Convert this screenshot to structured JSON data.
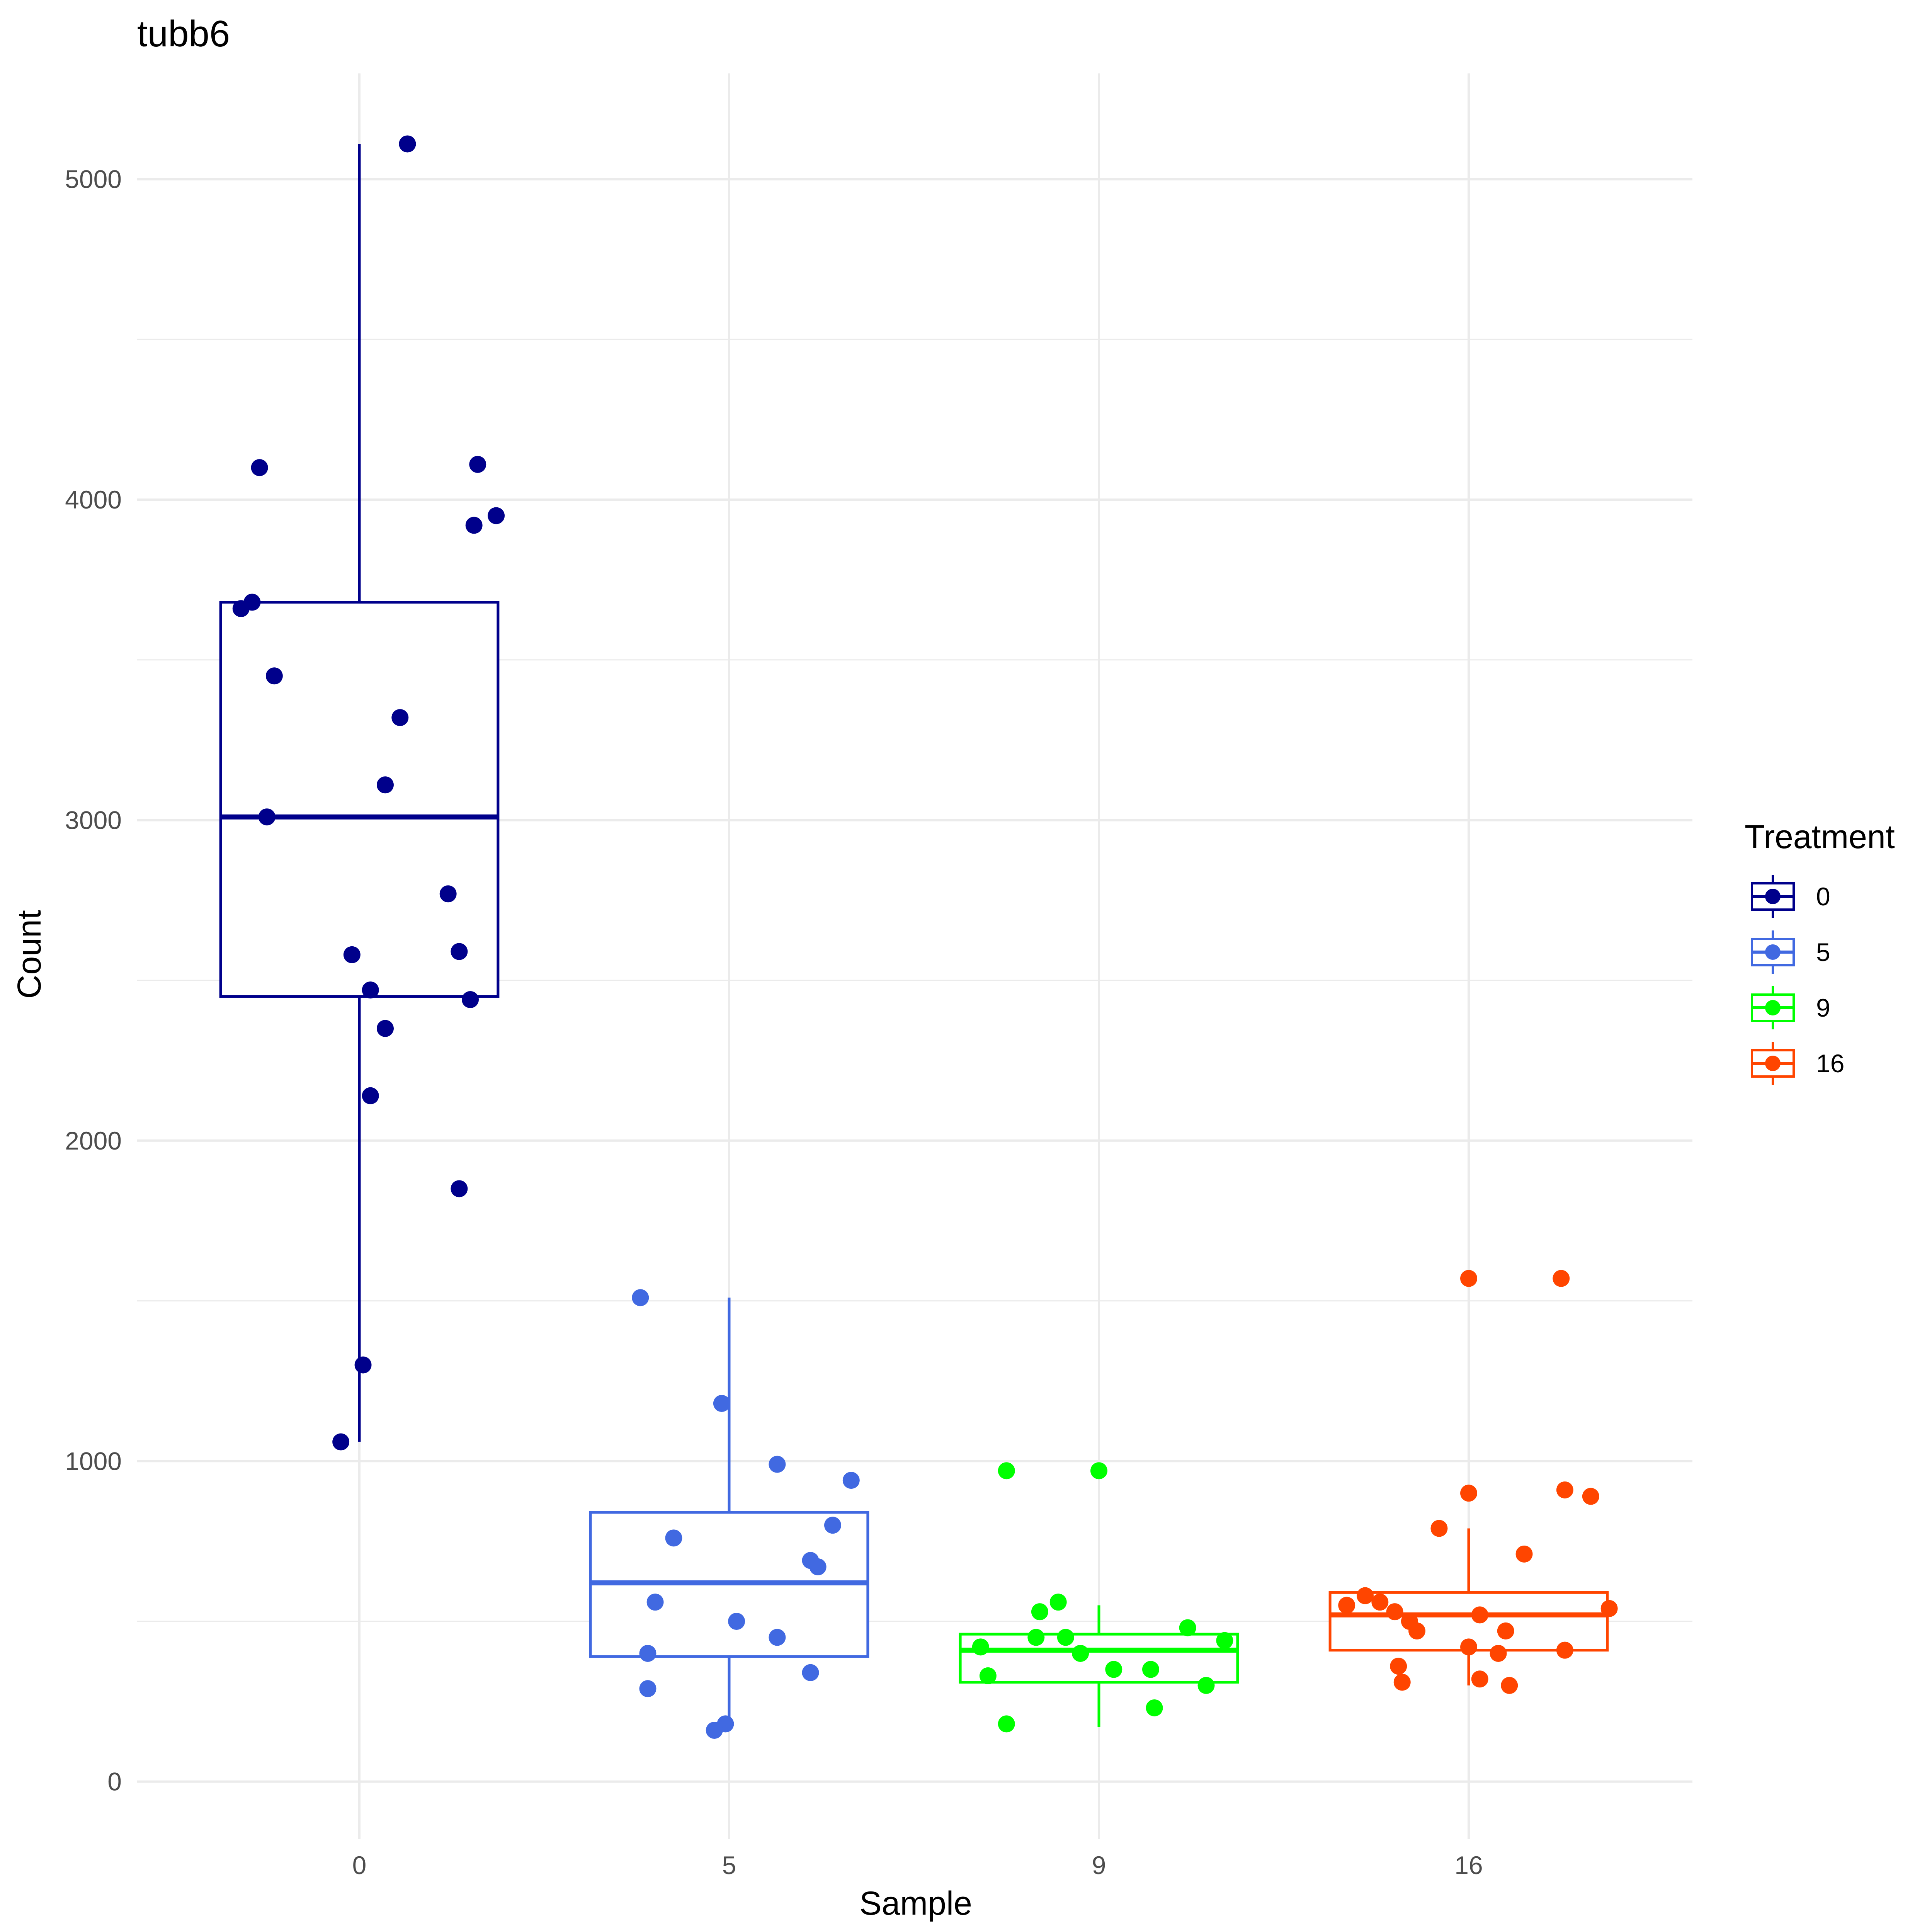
{
  "chart_data": {
    "type": "boxplot",
    "title": "tubb6",
    "xlabel": "Sample",
    "ylabel": "Count",
    "ylim": [
      -180,
      5330
    ],
    "y_ticks": [
      0,
      1000,
      2000,
      3000,
      4000,
      5000
    ],
    "grid": true,
    "legend": {
      "title": "Treatment",
      "position": "right",
      "entries": [
        "0",
        "5",
        "9",
        "16"
      ]
    },
    "categories": [
      "0",
      "5",
      "9",
      "16"
    ],
    "series": [
      {
        "name": "0",
        "color": "#00008B",
        "box": {
          "whisker_low": 1060,
          "q1": 2450,
          "median": 3010,
          "q3": 3680,
          "whisker_high": 5110
        },
        "points": [
          {
            "x": 0.13,
            "y": 5110
          },
          {
            "x": -0.27,
            "y": 4100
          },
          {
            "x": 0.32,
            "y": 4110
          },
          {
            "x": 0.37,
            "y": 3950
          },
          {
            "x": 0.31,
            "y": 3920
          },
          {
            "x": -0.32,
            "y": 3660
          },
          {
            "x": -0.29,
            "y": 3680
          },
          {
            "x": -0.23,
            "y": 3450
          },
          {
            "x": 0.11,
            "y": 3320
          },
          {
            "x": 0.07,
            "y": 3110
          },
          {
            "x": -0.25,
            "y": 3010
          },
          {
            "x": 0.24,
            "y": 2770
          },
          {
            "x": -0.02,
            "y": 2580
          },
          {
            "x": 0.27,
            "y": 2590
          },
          {
            "x": 0.03,
            "y": 2470
          },
          {
            "x": 0.3,
            "y": 2440
          },
          {
            "x": 0.07,
            "y": 2350
          },
          {
            "x": 0.03,
            "y": 2140
          },
          {
            "x": 0.27,
            "y": 1850
          },
          {
            "x": 0.01,
            "y": 1300
          },
          {
            "x": -0.05,
            "y": 1060
          }
        ]
      },
      {
        "name": "5",
        "color": "#4169E1",
        "box": {
          "whisker_low": 160,
          "q1": 390,
          "median": 620,
          "q3": 840,
          "whisker_high": 1510
        },
        "points": [
          {
            "x": -0.24,
            "y": 1510
          },
          {
            "x": -0.02,
            "y": 1180
          },
          {
            "x": 0.13,
            "y": 990
          },
          {
            "x": 0.33,
            "y": 940
          },
          {
            "x": 0.28,
            "y": 800
          },
          {
            "x": -0.15,
            "y": 760
          },
          {
            "x": 0.22,
            "y": 690
          },
          {
            "x": 0.24,
            "y": 670
          },
          {
            "x": -0.2,
            "y": 560
          },
          {
            "x": 0.02,
            "y": 500
          },
          {
            "x": 0.13,
            "y": 450
          },
          {
            "x": -0.22,
            "y": 400
          },
          {
            "x": 0.22,
            "y": 340
          },
          {
            "x": -0.22,
            "y": 290
          },
          {
            "x": -0.01,
            "y": 180
          },
          {
            "x": -0.04,
            "y": 160
          }
        ]
      },
      {
        "name": "9",
        "color": "#00FF00",
        "box": {
          "whisker_low": 170,
          "q1": 310,
          "median": 410,
          "q3": 460,
          "whisker_high": 550
        },
        "points": [
          {
            "x": -0.25,
            "y": 970
          },
          {
            "x": 0.0,
            "y": 970
          },
          {
            "x": -0.11,
            "y": 560
          },
          {
            "x": -0.16,
            "y": 530
          },
          {
            "x": 0.24,
            "y": 480
          },
          {
            "x": -0.17,
            "y": 450
          },
          {
            "x": -0.09,
            "y": 450
          },
          {
            "x": 0.34,
            "y": 440
          },
          {
            "x": -0.32,
            "y": 420
          },
          {
            "x": -0.05,
            "y": 400
          },
          {
            "x": 0.04,
            "y": 350
          },
          {
            "x": 0.14,
            "y": 350
          },
          {
            "x": -0.3,
            "y": 330
          },
          {
            "x": 0.29,
            "y": 300
          },
          {
            "x": 0.15,
            "y": 230
          },
          {
            "x": -0.25,
            "y": 180
          }
        ]
      },
      {
        "name": "16",
        "color": "#FF4500",
        "box": {
          "whisker_low": 300,
          "q1": 410,
          "median": 520,
          "q3": 590,
          "whisker_high": 790
        },
        "points": [
          {
            "x": 0.0,
            "y": 1570
          },
          {
            "x": 0.25,
            "y": 1570
          },
          {
            "x": 0.0,
            "y": 900
          },
          {
            "x": 0.26,
            "y": 910
          },
          {
            "x": 0.33,
            "y": 890
          },
          {
            "x": -0.08,
            "y": 790
          },
          {
            "x": 0.15,
            "y": 710
          },
          {
            "x": -0.28,
            "y": 580
          },
          {
            "x": -0.33,
            "y": 550
          },
          {
            "x": -0.24,
            "y": 560
          },
          {
            "x": -0.2,
            "y": 530
          },
          {
            "x": 0.38,
            "y": 540
          },
          {
            "x": 0.03,
            "y": 520
          },
          {
            "x": -0.16,
            "y": 500
          },
          {
            "x": -0.14,
            "y": 470
          },
          {
            "x": 0.1,
            "y": 470
          },
          {
            "x": 0.0,
            "y": 420
          },
          {
            "x": 0.08,
            "y": 400
          },
          {
            "x": 0.26,
            "y": 410
          },
          {
            "x": -0.19,
            "y": 360
          },
          {
            "x": 0.03,
            "y": 320
          },
          {
            "x": -0.18,
            "y": 310
          },
          {
            "x": 0.11,
            "y": 300
          }
        ]
      }
    ]
  }
}
